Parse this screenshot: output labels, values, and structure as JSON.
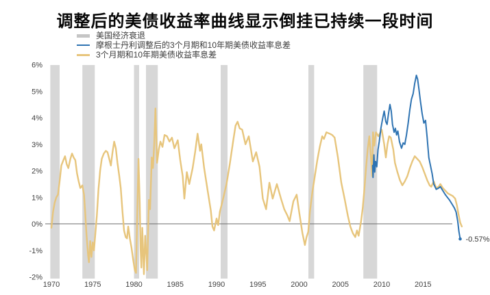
{
  "title": "调整后的美债收益率曲线显示倒挂已持续一段时间",
  "legend": [
    {
      "label": "美国经济衰退",
      "type": "band",
      "color": "#c5c5c5"
    },
    {
      "label": "摩根士丹利调整后的3个月期和10年期美债收益率息差",
      "type": "line",
      "color": "#2e73b2"
    },
    {
      "label": "3个月期和10年期美债收益率息差",
      "type": "line",
      "color": "#e7c57c"
    }
  ],
  "chart_data": {
    "type": "line",
    "title": "调整后的美债收益率曲线显示倒挂已持续一段时间",
    "xlabel": "",
    "ylabel": "",
    "grid": false,
    "legend_position": "top-left",
    "x_axis": {
      "ticks": [
        1970,
        1975,
        1980,
        1985,
        1990,
        1995,
        2000,
        2005,
        2010,
        2015
      ],
      "range": [
        1969.8,
        2020.2
      ]
    },
    "y_axis": {
      "ticks": [
        "6%",
        "5%",
        "4%",
        "3%",
        "2%",
        "1%",
        "0%",
        "-1%",
        "-2%"
      ],
      "tick_values": [
        6,
        5,
        4,
        3,
        2,
        1,
        0,
        -1,
        -2
      ],
      "range": [
        -2,
        6
      ],
      "unit": "%"
    },
    "zero_line": true,
    "colors": {
      "recession_band": "#d7d7d7",
      "zero_line": "#6b6b6b"
    },
    "recessions": [
      [
        1969.87,
        1971.0
      ],
      [
        1973.75,
        1975.25
      ],
      [
        1980.0,
        1980.62
      ],
      [
        1981.45,
        1982.88
      ],
      [
        1990.5,
        1991.33
      ],
      [
        2001.12,
        2001.82
      ],
      [
        2007.78,
        2009.45
      ]
    ],
    "series": [
      {
        "id": "spread",
        "name": "3个月期和10年期美债收益率息差",
        "color": "#e7c57c",
        "width": 2.4,
        "points": [
          [
            1970.0,
            -0.15
          ],
          [
            1970.2,
            0.45
          ],
          [
            1970.4,
            0.8
          ],
          [
            1970.6,
            1.0
          ],
          [
            1970.8,
            1.1
          ],
          [
            1971.0,
            1.6
          ],
          [
            1971.2,
            2.2
          ],
          [
            1971.45,
            2.4
          ],
          [
            1971.65,
            2.55
          ],
          [
            1971.85,
            2.25
          ],
          [
            1972.05,
            2.1
          ],
          [
            1972.3,
            2.45
          ],
          [
            1972.5,
            2.65
          ],
          [
            1972.7,
            2.5
          ],
          [
            1972.9,
            2.4
          ],
          [
            1973.1,
            1.9
          ],
          [
            1973.3,
            1.6
          ],
          [
            1973.5,
            1.35
          ],
          [
            1973.75,
            1.45
          ],
          [
            1973.95,
            1.1
          ],
          [
            1974.1,
            0.4
          ],
          [
            1974.25,
            -0.4
          ],
          [
            1974.45,
            -1.2
          ],
          [
            1974.55,
            -1.45
          ],
          [
            1974.7,
            -0.65
          ],
          [
            1974.85,
            -1.25
          ],
          [
            1975.0,
            -0.7
          ],
          [
            1975.15,
            -1.0
          ],
          [
            1975.3,
            -0.45
          ],
          [
            1975.5,
            0.3
          ],
          [
            1975.7,
            1.3
          ],
          [
            1975.9,
            2.0
          ],
          [
            1976.1,
            2.45
          ],
          [
            1976.35,
            2.65
          ],
          [
            1976.6,
            2.75
          ],
          [
            1976.8,
            2.7
          ],
          [
            1977.0,
            2.45
          ],
          [
            1977.2,
            2.2
          ],
          [
            1977.4,
            2.7
          ],
          [
            1977.6,
            3.1
          ],
          [
            1977.8,
            2.85
          ],
          [
            1978.0,
            2.3
          ],
          [
            1978.2,
            1.85
          ],
          [
            1978.4,
            1.35
          ],
          [
            1978.6,
            0.5
          ],
          [
            1978.8,
            -0.25
          ],
          [
            1979.0,
            -0.5
          ],
          [
            1979.15,
            -0.55
          ],
          [
            1979.3,
            -0.1
          ],
          [
            1979.5,
            -0.55
          ],
          [
            1979.7,
            -0.9
          ],
          [
            1979.9,
            -1.35
          ],
          [
            1980.1,
            -1.75
          ],
          [
            1980.25,
            -1.85
          ],
          [
            1980.4,
            0.4
          ],
          [
            1980.55,
            2.45
          ],
          [
            1980.7,
            0.8
          ],
          [
            1980.8,
            -0.9
          ],
          [
            1980.9,
            -1.65
          ],
          [
            1981.0,
            -0.15
          ],
          [
            1981.1,
            -1.0
          ],
          [
            1981.2,
            -1.9
          ],
          [
            1981.35,
            -0.45
          ],
          [
            1981.5,
            -1.2
          ],
          [
            1981.6,
            -1.75
          ],
          [
            1981.8,
            0.9
          ],
          [
            1981.95,
            0.55
          ],
          [
            1982.15,
            2.5
          ],
          [
            1982.3,
            2.1
          ],
          [
            1982.45,
            3.0
          ],
          [
            1982.6,
            4.35
          ],
          [
            1982.8,
            2.3
          ],
          [
            1983.0,
            2.8
          ],
          [
            1983.2,
            3.1
          ],
          [
            1983.45,
            2.9
          ],
          [
            1983.7,
            3.35
          ],
          [
            1984.0,
            3.3
          ],
          [
            1984.3,
            3.1
          ],
          [
            1984.6,
            3.25
          ],
          [
            1984.9,
            2.85
          ],
          [
            1985.3,
            3.15
          ],
          [
            1985.6,
            2.4
          ],
          [
            1985.9,
            1.8
          ],
          [
            1986.1,
            0.95
          ],
          [
            1986.4,
            1.95
          ],
          [
            1986.7,
            1.5
          ],
          [
            1987.1,
            2.1
          ],
          [
            1987.4,
            2.7
          ],
          [
            1987.7,
            3.4
          ],
          [
            1988.0,
            2.75
          ],
          [
            1988.15,
            3.0
          ],
          [
            1988.5,
            2.1
          ],
          [
            1988.9,
            1.3
          ],
          [
            1989.3,
            0.5
          ],
          [
            1989.5,
            -0.1
          ],
          [
            1989.7,
            -0.25
          ],
          [
            1990.0,
            0.2
          ],
          [
            1990.2,
            -0.05
          ],
          [
            1990.4,
            0.45
          ],
          [
            1990.8,
            0.95
          ],
          [
            1991.2,
            1.5
          ],
          [
            1991.6,
            2.25
          ],
          [
            1992.0,
            3.1
          ],
          [
            1992.3,
            3.7
          ],
          [
            1992.55,
            3.85
          ],
          [
            1992.8,
            3.6
          ],
          [
            1993.1,
            3.55
          ],
          [
            1993.5,
            3.0
          ],
          [
            1993.9,
            3.3
          ],
          [
            1994.4,
            2.35
          ],
          [
            1994.8,
            2.7
          ],
          [
            1995.2,
            2.15
          ],
          [
            1995.6,
            0.95
          ],
          [
            1996.0,
            0.55
          ],
          [
            1996.4,
            1.55
          ],
          [
            1996.8,
            0.95
          ],
          [
            1997.3,
            1.5
          ],
          [
            1997.8,
            0.95
          ],
          [
            1998.2,
            0.55
          ],
          [
            1998.6,
            0.3
          ],
          [
            1998.85,
            0.1
          ],
          [
            1999.3,
            0.85
          ],
          [
            1999.7,
            1.1
          ],
          [
            2000.0,
            0.45
          ],
          [
            2000.4,
            -0.35
          ],
          [
            2000.7,
            -0.8
          ],
          [
            2000.9,
            -0.5
          ],
          [
            2001.1,
            -0.3
          ],
          [
            2001.3,
            0.45
          ],
          [
            2001.6,
            1.2
          ],
          [
            2001.9,
            1.8
          ],
          [
            2002.2,
            2.4
          ],
          [
            2002.5,
            2.9
          ],
          [
            2002.8,
            3.3
          ],
          [
            2003.0,
            3.2
          ],
          [
            2003.3,
            3.45
          ],
          [
            2003.7,
            3.4
          ],
          [
            2004.0,
            3.35
          ],
          [
            2004.3,
            3.25
          ],
          [
            2004.7,
            2.5
          ],
          [
            2005.1,
            1.55
          ],
          [
            2005.5,
            0.95
          ],
          [
            2005.9,
            0.3
          ],
          [
            2006.2,
            -0.1
          ],
          [
            2006.5,
            -0.35
          ],
          [
            2006.8,
            -0.5
          ],
          [
            2007.0,
            -0.25
          ],
          [
            2007.2,
            -0.45
          ],
          [
            2007.5,
            0.1
          ],
          [
            2007.7,
            0.6
          ],
          [
            2007.9,
            1.3
          ],
          [
            2008.1,
            2.1
          ],
          [
            2008.3,
            2.8
          ],
          [
            2008.5,
            3.3
          ],
          [
            2008.7,
            2.5
          ],
          [
            2008.85,
            1.8
          ],
          [
            2008.95,
            3.45
          ],
          [
            2009.1,
            2.95
          ],
          [
            2009.3,
            3.45
          ],
          [
            2009.6,
            3.3
          ],
          [
            2010.0,
            3.55
          ],
          [
            2010.3,
            3.0
          ],
          [
            2010.5,
            2.5
          ],
          [
            2010.7,
            3.0
          ],
          [
            2010.9,
            3.3
          ],
          [
            2011.1,
            3.25
          ],
          [
            2011.4,
            2.8
          ],
          [
            2011.6,
            2.3
          ],
          [
            2011.9,
            1.95
          ],
          [
            2012.2,
            1.65
          ],
          [
            2012.5,
            1.45
          ],
          [
            2012.8,
            1.6
          ],
          [
            2013.1,
            1.8
          ],
          [
            2013.4,
            2.1
          ],
          [
            2013.7,
            2.35
          ],
          [
            2014.0,
            2.55
          ],
          [
            2014.3,
            2.45
          ],
          [
            2014.6,
            2.35
          ],
          [
            2014.9,
            2.15
          ],
          [
            2015.2,
            1.9
          ],
          [
            2015.5,
            1.65
          ],
          [
            2015.8,
            1.45
          ],
          [
            2016.0,
            1.4
          ],
          [
            2016.3,
            1.6
          ],
          [
            2016.6,
            1.35
          ],
          [
            2016.9,
            1.4
          ],
          [
            2017.1,
            1.5
          ],
          [
            2017.4,
            1.35
          ],
          [
            2017.7,
            1.25
          ],
          [
            2018.0,
            1.15
          ],
          [
            2018.3,
            1.1
          ],
          [
            2018.6,
            1.05
          ],
          [
            2018.9,
            0.95
          ],
          [
            2019.1,
            0.7
          ],
          [
            2019.3,
            0.35
          ],
          [
            2019.5,
            0.05
          ],
          [
            2019.7,
            -0.1
          ]
        ]
      },
      {
        "id": "adjusted-spread",
        "name": "摩根士丹利调整后的3个月期和10年期美债收益率息差",
        "color": "#2e73b2",
        "width": 2,
        "points": [
          [
            2008.9,
            2.2
          ],
          [
            2008.95,
            1.75
          ],
          [
            2009.05,
            2.6
          ],
          [
            2009.15,
            1.95
          ],
          [
            2009.25,
            2.35
          ],
          [
            2009.4,
            2.15
          ],
          [
            2009.55,
            2.8
          ],
          [
            2009.7,
            3.1
          ],
          [
            2009.9,
            3.6
          ],
          [
            2010.1,
            3.95
          ],
          [
            2010.3,
            4.25
          ],
          [
            2010.5,
            3.85
          ],
          [
            2010.65,
            3.75
          ],
          [
            2010.8,
            4.1
          ],
          [
            2011.0,
            4.5
          ],
          [
            2011.15,
            4.25
          ],
          [
            2011.3,
            3.75
          ],
          [
            2011.5,
            3.45
          ],
          [
            2011.65,
            3.6
          ],
          [
            2011.8,
            3.35
          ],
          [
            2011.95,
            3.5
          ],
          [
            2012.15,
            3.1
          ],
          [
            2012.4,
            2.85
          ],
          [
            2012.6,
            3.05
          ],
          [
            2012.8,
            3.0
          ],
          [
            2013.0,
            3.35
          ],
          [
            2013.2,
            3.8
          ],
          [
            2013.4,
            4.3
          ],
          [
            2013.6,
            4.7
          ],
          [
            2013.8,
            4.9
          ],
          [
            2014.0,
            5.3
          ],
          [
            2014.2,
            5.6
          ],
          [
            2014.35,
            5.45
          ],
          [
            2014.5,
            5.1
          ],
          [
            2014.7,
            4.6
          ],
          [
            2014.9,
            4.15
          ],
          [
            2015.1,
            3.8
          ],
          [
            2015.3,
            3.9
          ],
          [
            2015.5,
            3.25
          ],
          [
            2015.7,
            2.5
          ],
          [
            2015.9,
            2.2
          ],
          [
            2016.1,
            1.9
          ],
          [
            2016.3,
            1.5
          ],
          [
            2016.6,
            1.3
          ],
          [
            2016.9,
            1.35
          ],
          [
            2017.1,
            1.4
          ],
          [
            2017.4,
            1.25
          ],
          [
            2017.7,
            1.1
          ],
          [
            2017.95,
            1.0
          ],
          [
            2018.2,
            0.9
          ],
          [
            2018.5,
            0.75
          ],
          [
            2018.8,
            0.6
          ],
          [
            2019.0,
            0.45
          ],
          [
            2019.2,
            0.1
          ],
          [
            2019.35,
            -0.3
          ],
          [
            2019.5,
            -0.57
          ]
        ]
      }
    ],
    "annotation": {
      "label": "-0.57%",
      "x": 2019.5,
      "y": -0.57,
      "color": "#2e73b2"
    }
  }
}
